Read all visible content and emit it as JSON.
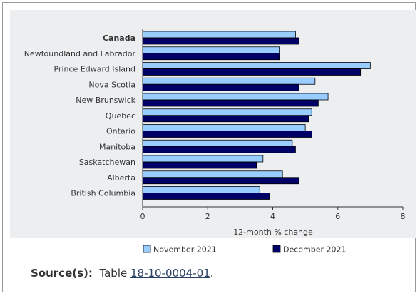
{
  "chart_data": {
    "type": "bar",
    "orientation": "horizontal",
    "categories": [
      "Canada",
      "Newfoundland and Labrador",
      "Prince Edward Island",
      "Nova Scotia",
      "New Brunswick",
      "Quebec",
      "Ontario",
      "Manitoba",
      "Saskatchewan",
      "Alberta",
      "British Columbia"
    ],
    "bold_categories": [
      "Canada"
    ],
    "series": [
      {
        "name": "November 2021",
        "color": "#99ccff",
        "values": [
          4.7,
          4.2,
          7.0,
          5.3,
          5.7,
          5.2,
          5.0,
          4.6,
          3.7,
          4.3,
          3.6
        ]
      },
      {
        "name": "December 2021",
        "color": "#000066",
        "values": [
          4.8,
          4.2,
          6.7,
          4.8,
          5.4,
          5.1,
          5.2,
          4.7,
          3.5,
          4.8,
          3.9
        ]
      }
    ],
    "xlabel": "12-month % change",
    "ylabel": "",
    "xlim": [
      0,
      8
    ],
    "xticks": [
      "0",
      "2",
      "4",
      "6",
      "8"
    ],
    "grid": false,
    "legend_position": "bottom"
  },
  "source": {
    "label": "Source(s):",
    "text": "Table",
    "link": "18-10-0004-01",
    "suffix": "."
  }
}
